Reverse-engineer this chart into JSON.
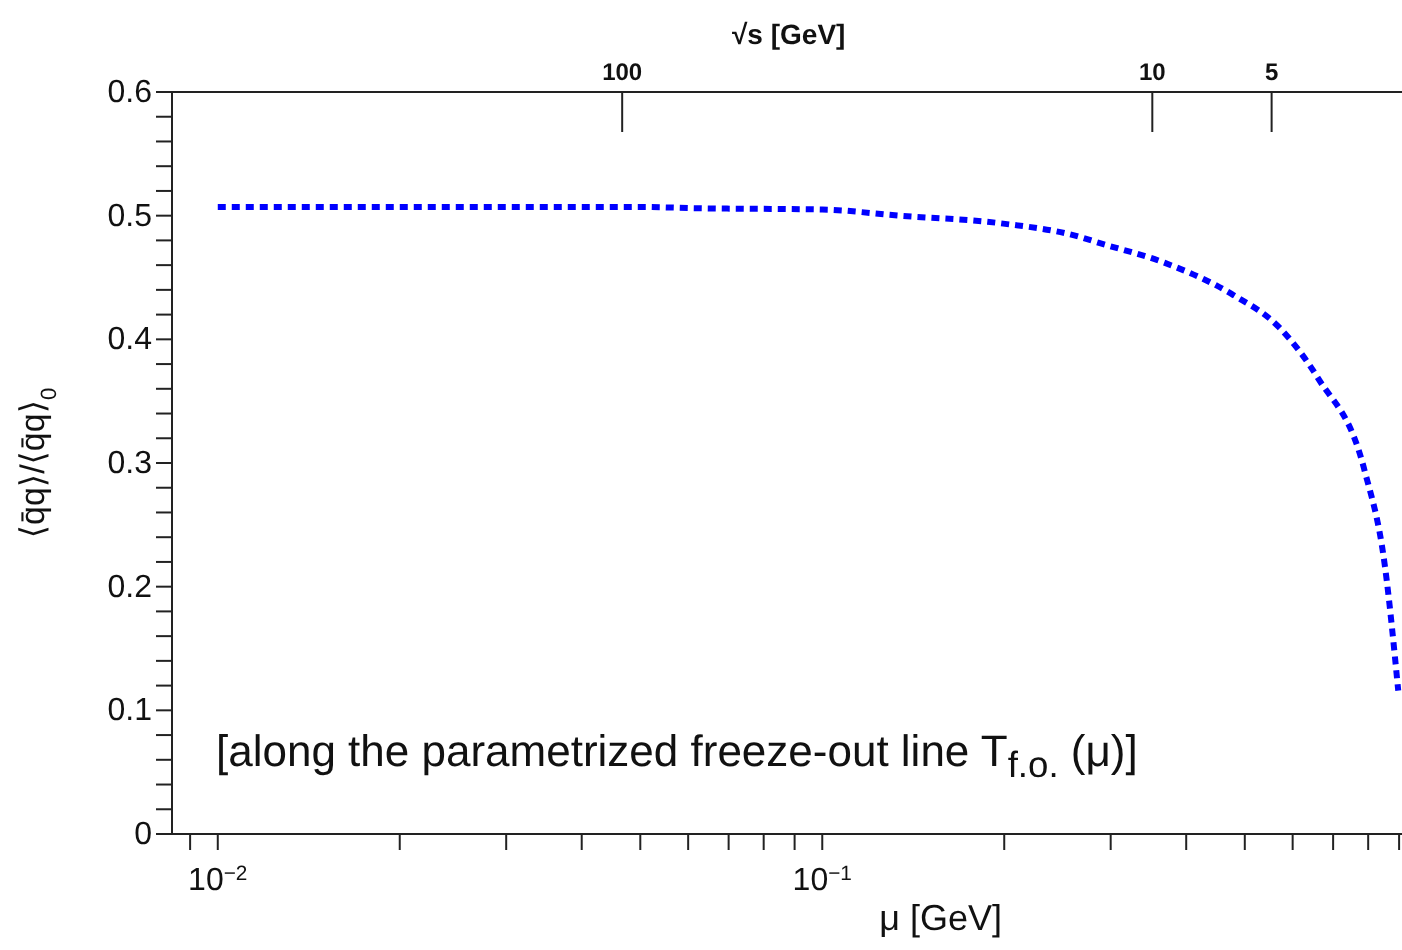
{
  "chart_data": {
    "type": "line",
    "xlabel": "μ [GeV]",
    "ylabel": "⟨q̄q⟩/⟨q̄q⟩$_{0}$",
    "x2label": "√s [GeV]",
    "annotations": [
      "[along the parametrized freeze-out line  T$_{f.o.}$ (μ)]",
      "100",
      "10",
      "5"
    ],
    "x": [
      0.01,
      0.02,
      0.03,
      0.05,
      0.0625,
      0.1,
      0.134,
      0.196,
      0.266,
      0.287,
      0.368,
      0.478,
      0.569,
      0.662,
      0.789,
      0.853,
      0.897
    ],
    "series": [
      {
        "color": "#0000ff",
        "values": [
          0.507,
          0.507,
          0.507,
          0.507,
          0.506,
          0.505,
          0.5,
          0.494,
          0.483,
          0.478,
          0.462,
          0.436,
          0.41,
          0.368,
          0.294,
          0.216,
          0.116
        ]
      }
    ],
    "log": "x",
    "xlim": [
      0.0084,
      0.91
    ],
    "xticks": [
      {
        "value": 0.009,
        "label": null
      },
      {
        "value": 0.01,
        "label": "10$^{−2}$"
      },
      {
        "value": 0.02,
        "label": null
      },
      {
        "value": 0.03,
        "label": null
      },
      {
        "value": 0.04,
        "label": null
      },
      {
        "value": 0.05,
        "label": null
      },
      {
        "value": 0.06,
        "label": null
      },
      {
        "value": 0.07,
        "label": null
      },
      {
        "value": 0.08,
        "label": null
      },
      {
        "value": 0.09,
        "label": null
      },
      {
        "value": 0.1,
        "label": "10$^{−1}$"
      },
      {
        "value": 0.2,
        "label": null
      },
      {
        "value": 0.3,
        "label": null
      },
      {
        "value": 0.4,
        "label": null
      },
      {
        "value": 0.5,
        "label": null
      },
      {
        "value": 0.6,
        "label": null
      },
      {
        "value": 0.7,
        "label": null
      },
      {
        "value": 0.8,
        "label": null
      },
      {
        "value": 0.9,
        "label": null
      }
    ],
    "ylim": [
      0,
      0.6
    ],
    "yticks": [
      0,
      {
        "value": 0.02,
        "label": null
      },
      {
        "value": 0.04,
        "label": null
      },
      {
        "value": 0.06,
        "label": null
      },
      {
        "value": 0.08,
        "label": null
      },
      0.1,
      {
        "value": 0.12,
        "label": null
      },
      {
        "value": 0.14,
        "label": null
      },
      {
        "value": 0.16,
        "label": null
      },
      {
        "value": 0.18,
        "label": null
      },
      0.2,
      {
        "value": 0.22,
        "label": null
      },
      {
        "value": 0.24,
        "label": null
      },
      {
        "value": 0.26,
        "label": null
      },
      {
        "value": 0.28,
        "label": null
      },
      0.3,
      {
        "value": 0.32,
        "label": null
      },
      {
        "value": 0.34,
        "label": null
      },
      {
        "value": 0.36,
        "label": null
      },
      {
        "value": 0.38,
        "label": null
      },
      0.4,
      {
        "value": 0.42,
        "label": null
      },
      {
        "value": 0.44,
        "label": null
      },
      {
        "value": 0.46,
        "label": null
      },
      {
        "value": 0.48,
        "label": null
      },
      0.5,
      {
        "value": 0.52,
        "label": null
      },
      {
        "value": 0.54,
        "label": null
      },
      {
        "value": 0.56,
        "label": null
      },
      {
        "value": 0.58,
        "label": null
      },
      0.6
    ],
    "grid": false,
    "legend": false,
    "marker": "none",
    "line_style": "dotted"
  }
}
